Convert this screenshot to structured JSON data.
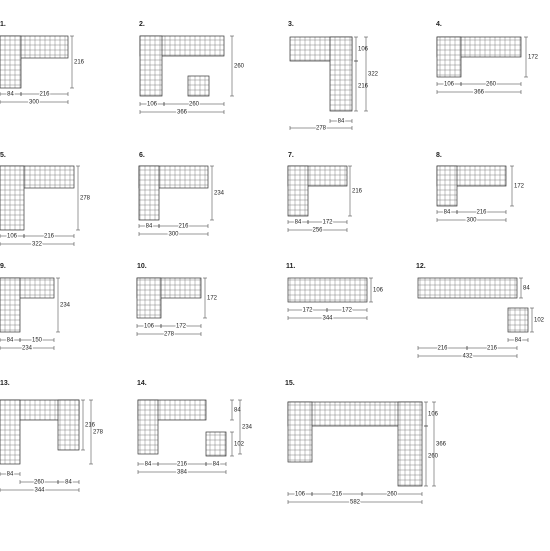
{
  "items": [
    {
      "label": "1.",
      "dims": [
        "216",
        "84",
        "216",
        "300"
      ]
    },
    {
      "label": "2.",
      "dims": [
        "260",
        "106",
        "260",
        "366"
      ]
    },
    {
      "label": "3.",
      "dims": [
        "106",
        "322",
        "216",
        "84",
        "278"
      ]
    },
    {
      "label": "4.",
      "dims": [
        "172",
        "106",
        "260",
        "366"
      ]
    },
    {
      "label": "5.",
      "dims": [
        "278",
        "106",
        "216",
        "322"
      ]
    },
    {
      "label": "6.",
      "dims": [
        "234",
        "84",
        "216",
        "300"
      ]
    },
    {
      "label": "7.",
      "dims": [
        "216",
        "84",
        "172",
        "256"
      ]
    },
    {
      "label": "8.",
      "dims": [
        "172",
        "84",
        "216",
        "300"
      ]
    },
    {
      "label": "9.",
      "dims": [
        "234",
        "84",
        "150",
        "234"
      ]
    },
    {
      "label": "10.",
      "dims": [
        "172",
        "106",
        "172",
        "278"
      ]
    },
    {
      "label": "11.",
      "dims": [
        "106",
        "172",
        "172",
        "344"
      ]
    },
    {
      "label": "12.",
      "dims": [
        "84",
        "102",
        "216",
        "216",
        "84",
        "432"
      ]
    },
    {
      "label": "13.",
      "dims": [
        "216",
        "278",
        "84",
        "260",
        "84",
        "344"
      ]
    },
    {
      "label": "14.",
      "dims": [
        "84",
        "234",
        "102",
        "84",
        "216",
        "84",
        "384"
      ]
    },
    {
      "label": "15.",
      "dims": [
        "106",
        "366",
        "260",
        "106",
        "216",
        "260",
        "582"
      ]
    }
  ]
}
